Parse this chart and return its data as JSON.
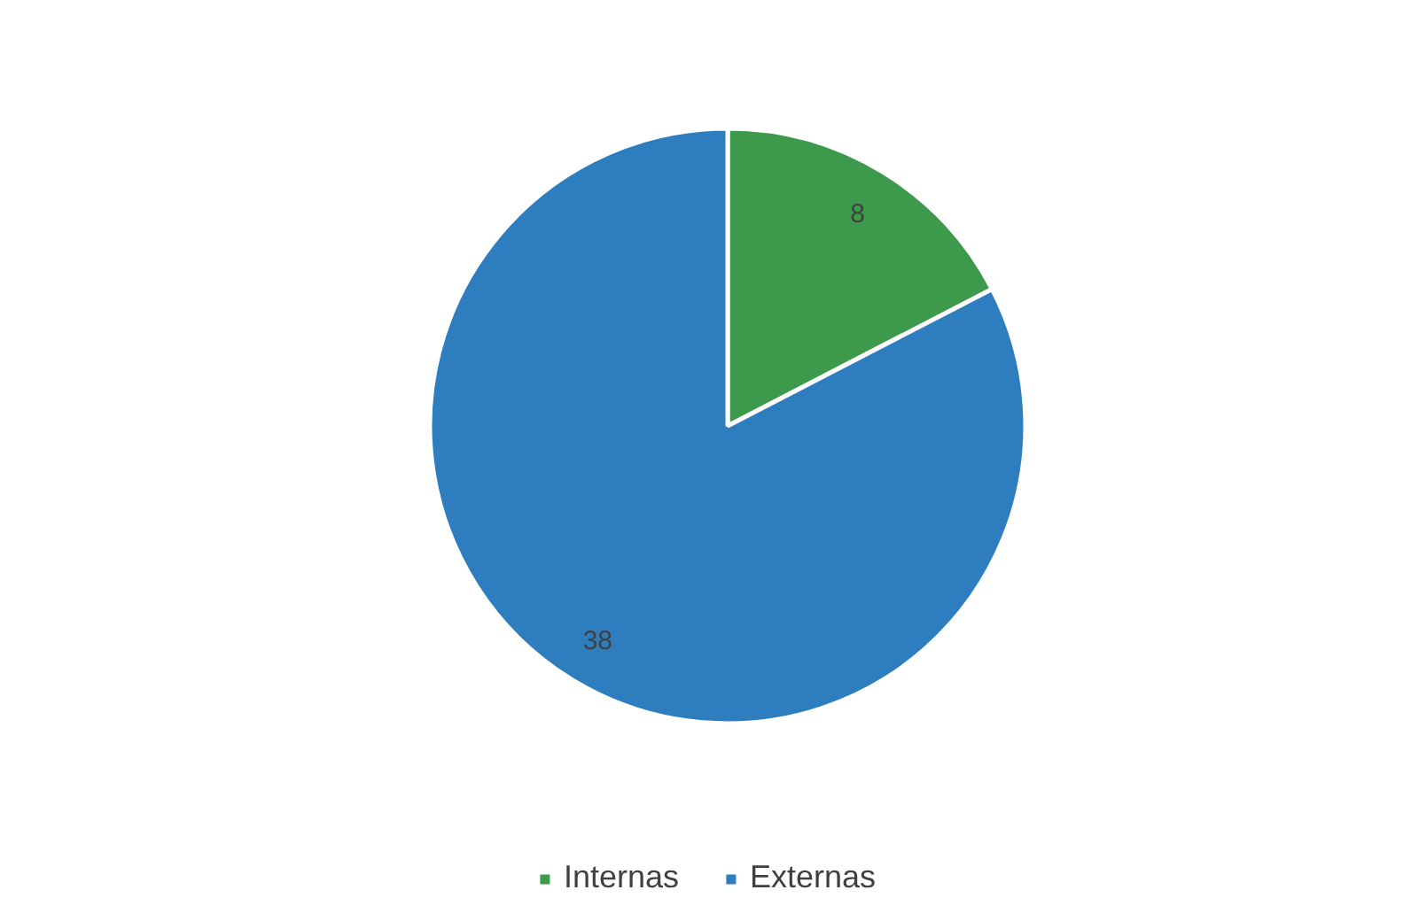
{
  "chart_data": {
    "type": "pie",
    "categories": [
      "Internas",
      "Externas"
    ],
    "values": [
      8,
      38
    ],
    "colors": [
      "#3d9a4c",
      "#2e7ebf"
    ],
    "data_labels": true,
    "legend": "bottom"
  }
}
